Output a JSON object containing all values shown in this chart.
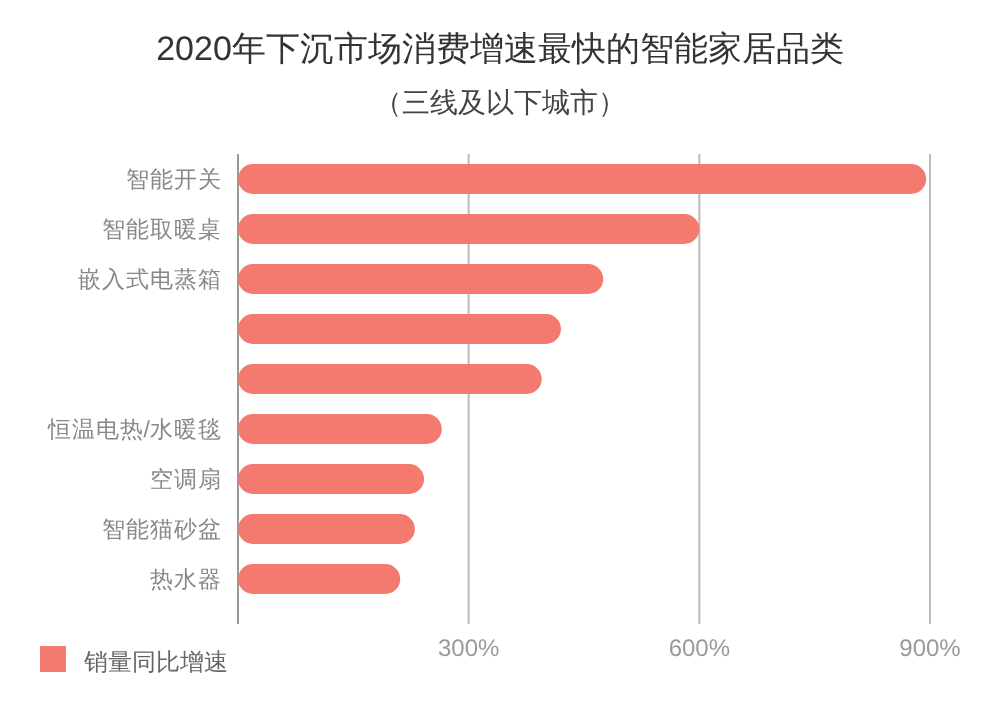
{
  "chart_data": {
    "type": "bar",
    "orientation": "horizontal",
    "title": "2020年下沉市场消费增速最快的智能家居品类",
    "subtitle": "（三线及以下城市）",
    "categories": [
      "智能开关",
      "智能取暖桌",
      "嵌入式电蒸箱",
      null,
      null,
      "恒温电热/水暖毯",
      "空调扇",
      "智能猫砂盆",
      "热水器"
    ],
    "series": [
      {
        "name": "销量同比增速",
        "color": "#f47a6f",
        "values": [
          895,
          600,
          475,
          420,
          395,
          265,
          242,
          230,
          211
        ]
      }
    ],
    "xlim": [
      0,
      900
    ],
    "xticks": [
      {
        "value": 300,
        "label": "300%"
      },
      {
        "value": 600,
        "label": "600%"
      },
      {
        "value": 900,
        "label": "900%"
      }
    ],
    "grid": "x",
    "legend": "bottom left"
  }
}
